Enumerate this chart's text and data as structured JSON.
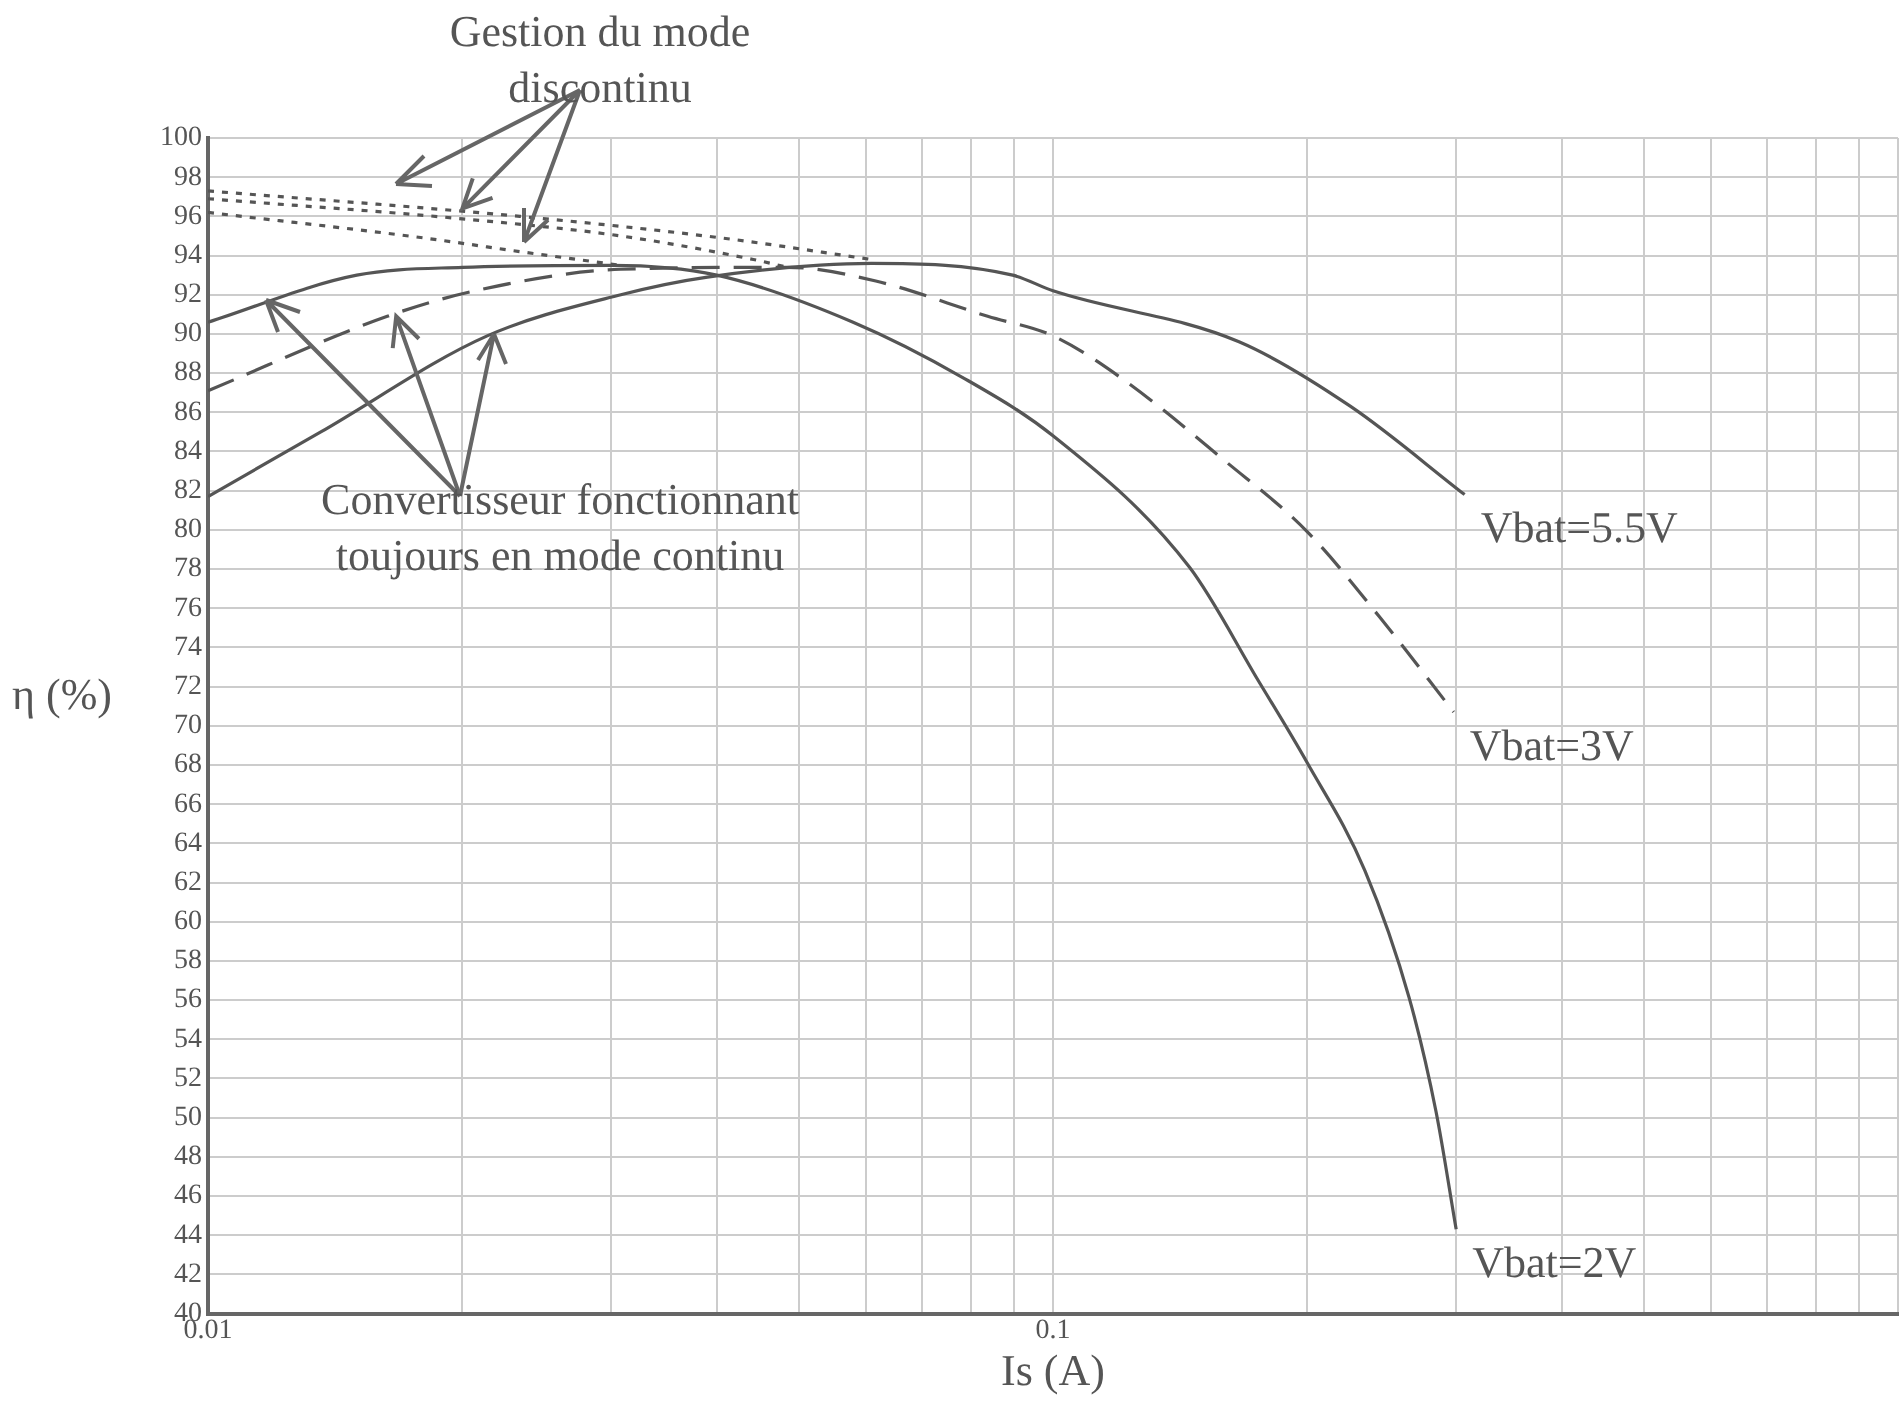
{
  "chart_data": {
    "type": "line",
    "xlabel": "Is (A)",
    "ylabel": "η (%)",
    "log": "x",
    "xlim": [
      0.01,
      1
    ],
    "xticks": [
      0.01,
      {
        "value": 0.02,
        "label": null
      },
      {
        "value": 0.03,
        "label": null
      },
      {
        "value": 0.04,
        "label": null
      },
      {
        "value": 0.05,
        "label": null
      },
      {
        "value": 0.06,
        "label": null
      },
      {
        "value": 0.07,
        "label": null
      },
      {
        "value": 0.08,
        "label": null
      },
      {
        "value": 0.09,
        "label": null
      },
      0.1,
      {
        "value": 0.2,
        "label": null
      },
      {
        "value": 0.3,
        "label": null
      },
      {
        "value": 0.4,
        "label": null
      },
      {
        "value": 0.5,
        "label": null
      },
      {
        "value": 0.6,
        "label": null
      },
      {
        "value": 0.7,
        "label": null
      },
      {
        "value": 0.8,
        "label": null
      },
      {
        "value": 0.9,
        "label": null
      },
      {
        "value": 1,
        "label": null
      }
    ],
    "ylim": [
      40,
      100
    ],
    "yticks": [
      40,
      42,
      44,
      46,
      48,
      50,
      52,
      54,
      56,
      58,
      60,
      62,
      64,
      66,
      68,
      70,
      72,
      74,
      76,
      78,
      80,
      82,
      84,
      86,
      88,
      90,
      92,
      94,
      96,
      98,
      100
    ],
    "grid": true,
    "legend": false,
    "marker": "none",
    "annotations": [
      {
        "text": "Gestion du mode discontinu",
        "x": 0.02,
        "y": 96.4
      },
      {
        "text": "Convertisseur fonctionnant toujours en mode continu",
        "x": 0.0167,
        "y": 90.9
      }
    ],
    "series": [
      {
        "name": "Vbat=5.5V",
        "color": "#555555",
        "line_style": "solid",
        "x": [
          0.01,
          0.0136,
          0.0214,
          0.0308,
          0.039,
          0.061,
          0.0896,
          0.1,
          0.166,
          0.225,
          0.307
        ],
        "values": [
          81.7,
          85,
          89.9,
          92,
          92.9,
          93.6,
          93,
          92.2,
          89.6,
          86.3,
          81.8
        ]
      },
      {
        "name": "Vbat=3V",
        "color": "#555555",
        "line_style": "dashed",
        "x": [
          0.01,
          0.0163,
          0.0207,
          0.0308,
          0.0485,
          0.0617,
          0.0837,
          0.1,
          0.12,
          0.16,
          0.2,
          0.243,
          0.298
        ],
        "values": [
          87.1,
          90.9,
          92.2,
          93.3,
          93.4,
          92.7,
          90.9,
          89.9,
          87.8,
          83.5,
          79.9,
          75.6,
          70.7
        ]
      },
      {
        "name": "Vbat=2V",
        "color": "#555555",
        "line_style": "solid",
        "x": [
          0.01,
          0.015,
          0.02,
          0.03,
          0.04,
          0.058,
          0.078,
          0.1,
          0.145,
          0.175,
          0.2,
          0.234,
          0.264,
          0.284,
          0.3
        ],
        "values": [
          90.6,
          93,
          93.4,
          93.5,
          93,
          90.6,
          87.8,
          84.8,
          78.1,
          72.3,
          68.1,
          62.6,
          56.1,
          50.3,
          44.3
        ]
      },
      {
        "color": "#555555",
        "line_style": "dotted",
        "x": [
          0.01,
          0.0234,
          0.0405,
          0.061
        ],
        "values": [
          97.3,
          96,
          94.9,
          93.8
        ]
      },
      {
        "color": "#555555",
        "line_style": "dotted",
        "x": [
          0.01,
          0.0197,
          0.0308,
          0.0442,
          0.0485
        ],
        "values": [
          96.9,
          95.9,
          95,
          93.8,
          93.4
        ]
      },
      {
        "color": "#555555",
        "line_style": "dotted",
        "x": [
          0.01,
          0.018,
          0.0234,
          0.0308
        ],
        "values": [
          96.2,
          94.9,
          94.2,
          93.5
        ]
      }
    ]
  }
}
